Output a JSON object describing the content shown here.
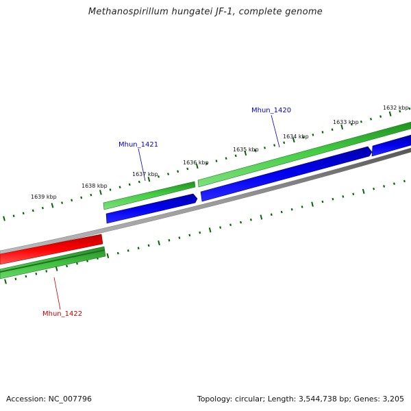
{
  "title": "Methanospirillum hungatei JF-1, complete genome",
  "footer": {
    "accession": "Accession: NC_007796",
    "summary": "Topology: circular; Length: 3,544,738 bp; Genes: 3,205"
  },
  "tick_labels": [
    "1632 kbp",
    "1633 kbp",
    "1634 kbp",
    "1635 kbp",
    "1636 kbp",
    "1637 kbp",
    "1638 kbp",
    "1639 kbp"
  ],
  "genes": [
    {
      "name": "Mhun_1420",
      "strand": "reverse",
      "color": "#0000cc"
    },
    {
      "name": "Mhun_1421",
      "strand": "reverse",
      "color": "#0000cc"
    },
    {
      "name": "Mhun_1422",
      "strand": "forward",
      "color": "#cc0000"
    }
  ],
  "colors": {
    "forward_cds": "#dd0000",
    "reverse_cds": "#0000ee",
    "gene_track": "#33bb33",
    "backbone": "#808080",
    "ticks": "#006600"
  }
}
